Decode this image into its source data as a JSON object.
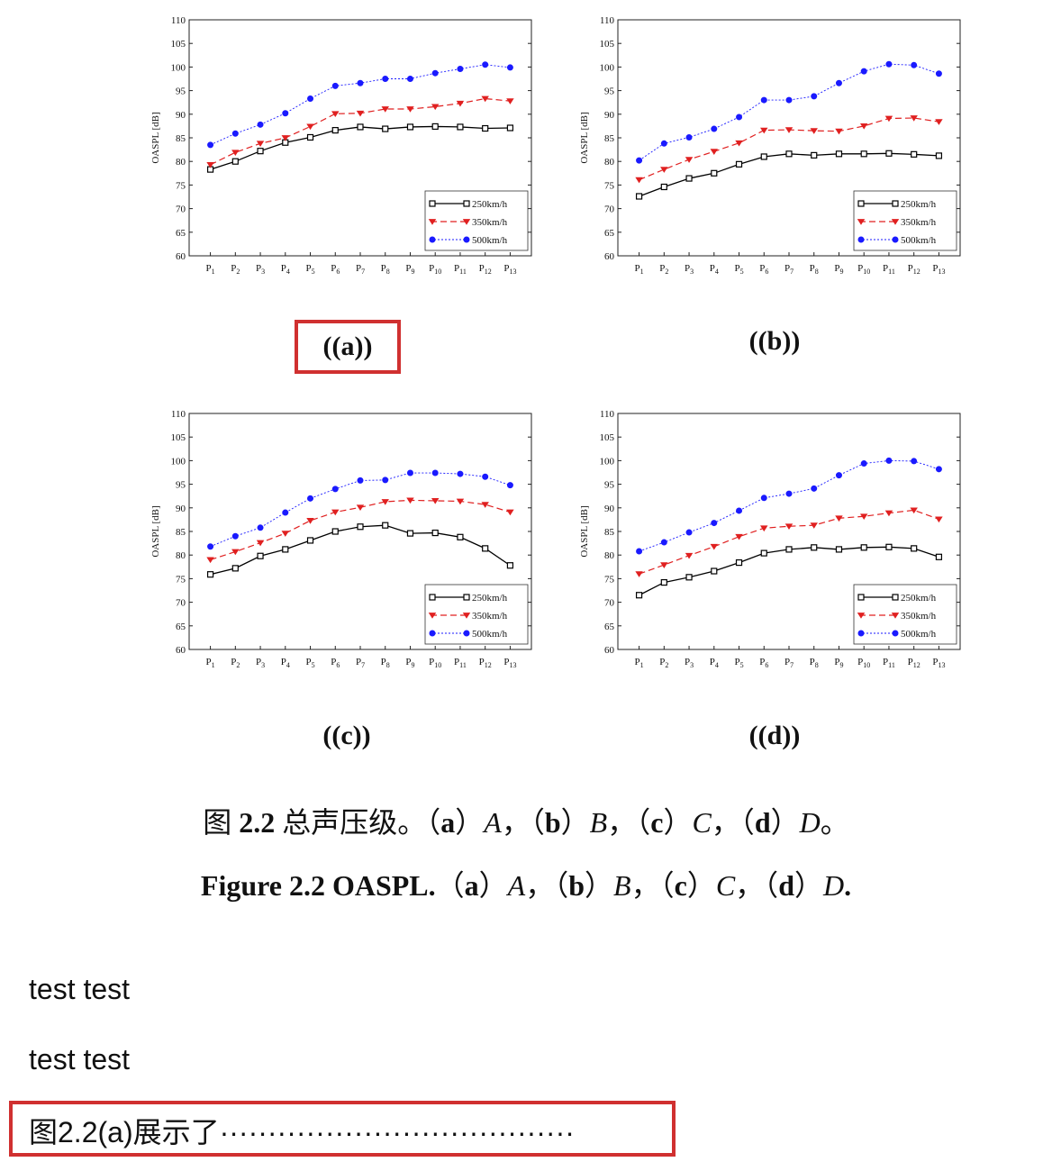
{
  "chart_data": [
    {
      "type": "line",
      "panel": "a",
      "ylabel": "OASPL [dB]",
      "ylim": [
        60,
        110
      ],
      "yticks": [
        60,
        65,
        70,
        75,
        80,
        85,
        90,
        95,
        100,
        105,
        110
      ],
      "categories": [
        "P1",
        "P2",
        "P3",
        "P4",
        "P5",
        "P6",
        "P7",
        "P8",
        "P9",
        "P10",
        "P11",
        "P12",
        "P13"
      ],
      "legend_position": "bottom-right",
      "series": [
        {
          "name": "250km/h",
          "color": "#000000",
          "values": [
            78.3,
            80.0,
            82.2,
            84.0,
            85.1,
            86.6,
            87.3,
            86.9,
            87.3,
            87.4,
            87.3,
            87.0,
            87.1
          ]
        },
        {
          "name": "350km/h",
          "color": "#e02020",
          "values": [
            79.3,
            81.9,
            83.8,
            85.0,
            87.4,
            90.1,
            90.2,
            91.1,
            91.1,
            91.6,
            92.3,
            93.3,
            92.8
          ]
        },
        {
          "name": "500km/h",
          "color": "#1a1aff",
          "values": [
            83.5,
            85.9,
            87.8,
            90.2,
            93.3,
            96.0,
            96.6,
            97.5,
            97.5,
            98.7,
            99.6,
            100.5,
            99.9
          ]
        }
      ]
    },
    {
      "type": "line",
      "panel": "b",
      "ylabel": "OASPL [dB]",
      "ylim": [
        60,
        110
      ],
      "yticks": [
        60,
        65,
        70,
        75,
        80,
        85,
        90,
        95,
        100,
        105,
        110
      ],
      "categories": [
        "P1",
        "P2",
        "P3",
        "P4",
        "P5",
        "P6",
        "P7",
        "P8",
        "P9",
        "P10",
        "P11",
        "P12",
        "P13"
      ],
      "legend_position": "bottom-right",
      "series": [
        {
          "name": "250km/h",
          "color": "#000000",
          "values": [
            72.6,
            74.6,
            76.4,
            77.5,
            79.4,
            81.0,
            81.6,
            81.3,
            81.6,
            81.6,
            81.7,
            81.5,
            81.2
          ]
        },
        {
          "name": "350km/h",
          "color": "#e02020",
          "values": [
            76.1,
            78.3,
            80.4,
            82.1,
            83.9,
            86.6,
            86.7,
            86.5,
            86.4,
            87.5,
            89.1,
            89.2,
            88.4
          ]
        },
        {
          "name": "500km/h",
          "color": "#1a1aff",
          "values": [
            80.2,
            83.8,
            85.1,
            86.9,
            89.4,
            93.0,
            93.0,
            93.8,
            96.6,
            99.1,
            100.6,
            100.4,
            98.6
          ]
        }
      ]
    },
    {
      "type": "line",
      "panel": "c",
      "ylabel": "OASPL [dB]",
      "ylim": [
        60,
        110
      ],
      "yticks": [
        60,
        65,
        70,
        75,
        80,
        85,
        90,
        95,
        100,
        105,
        110
      ],
      "categories": [
        "P1",
        "P2",
        "P3",
        "P4",
        "P5",
        "P6",
        "P7",
        "P8",
        "P9",
        "P10",
        "P11",
        "P12",
        "P13"
      ],
      "legend_position": "bottom-right",
      "series": [
        {
          "name": "250km/h",
          "color": "#000000",
          "values": [
            75.9,
            77.2,
            79.8,
            81.2,
            83.1,
            85.0,
            86.0,
            86.3,
            84.6,
            84.7,
            83.8,
            81.4,
            77.8
          ]
        },
        {
          "name": "350km/h",
          "color": "#e02020",
          "values": [
            79.0,
            80.7,
            82.6,
            84.6,
            87.3,
            89.1,
            90.1,
            91.3,
            91.6,
            91.5,
            91.4,
            90.7,
            89.1
          ]
        },
        {
          "name": "500km/h",
          "color": "#1a1aff",
          "values": [
            81.8,
            84.0,
            85.8,
            89.0,
            92.0,
            94.0,
            95.8,
            95.9,
            97.4,
            97.4,
            97.2,
            96.6,
            94.8
          ]
        }
      ]
    },
    {
      "type": "line",
      "panel": "d",
      "ylabel": "OASPL [dB]",
      "ylim": [
        60,
        110
      ],
      "yticks": [
        60,
        65,
        70,
        75,
        80,
        85,
        90,
        95,
        100,
        105,
        110
      ],
      "categories": [
        "P1",
        "P2",
        "P3",
        "P4",
        "P5",
        "P6",
        "P7",
        "P8",
        "P9",
        "P10",
        "P11",
        "P12",
        "P13"
      ],
      "legend_position": "bottom-right",
      "series": [
        {
          "name": "250km/h",
          "color": "#000000",
          "values": [
            71.5,
            74.2,
            75.3,
            76.6,
            78.4,
            80.4,
            81.2,
            81.6,
            81.2,
            81.6,
            81.7,
            81.4,
            79.6
          ]
        },
        {
          "name": "350km/h",
          "color": "#e02020",
          "values": [
            76.0,
            77.9,
            79.9,
            81.8,
            83.9,
            85.7,
            86.1,
            86.3,
            87.8,
            88.2,
            88.9,
            89.5,
            87.6
          ]
        },
        {
          "name": "500km/h",
          "color": "#1a1aff",
          "values": [
            80.8,
            82.7,
            84.8,
            86.8,
            89.4,
            92.1,
            93.0,
            94.1,
            96.9,
            99.4,
            100.0,
            99.9,
            98.2
          ]
        }
      ]
    }
  ],
  "subfigure_labels": {
    "a": "((a))",
    "b": "((b))",
    "c": "((c))",
    "d": "((d))"
  },
  "caption_cn": {
    "prefix": "图 ",
    "number": "2.2",
    "text": " 总声压级。（",
    "a": "a",
    "A": "A",
    "sep1": "，（",
    "b": "b",
    "B": "B",
    "sep2": "，（",
    "c": "c",
    "C": "C",
    "sep3": "，（",
    "d": "d",
    "D": "D",
    "end": "。"
  },
  "caption_en": {
    "prefix": "Figure 2.2 OASPL.",
    "open": "（",
    "a": "a",
    "A": "A",
    "sep1": "，（",
    "b": "b",
    "B": "B",
    "sep2": "，（",
    "c": "c",
    "C": "C",
    "sep3": "，（",
    "d": "d",
    "D": "D",
    "end": "."
  },
  "paragraphs": [
    "test test",
    "test test"
  ],
  "highlighted_text": "图2.2(a)展示了·····································",
  "highlight_color": "#d03030"
}
